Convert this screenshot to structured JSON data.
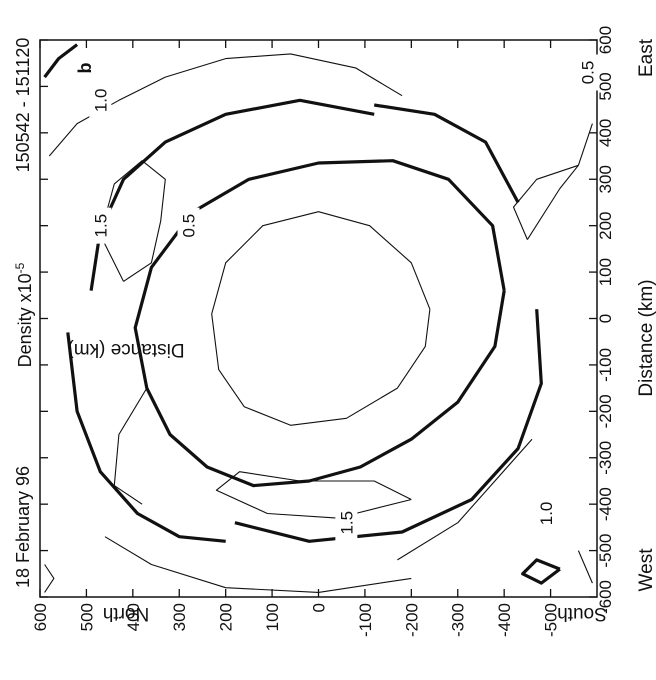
{
  "chart_data": {
    "type": "contour",
    "panel_label": "b",
    "date": "18 February 96",
    "quantity": "Density x10",
    "quantity_exponent": "-5",
    "time_range": "150542 - 151120",
    "xlabel": "Distance (km)",
    "ylabel": "Distance (km)",
    "x_left_label": "West",
    "x_right_label": "East",
    "y_top_label": "North",
    "y_bottom_label": "South",
    "xlim": [
      -600,
      600
    ],
    "ylim": [
      -600,
      600
    ],
    "x_ticks": [
      -600,
      -500,
      -400,
      -300,
      -200,
      -100,
      0,
      100,
      200,
      300,
      400,
      500,
      600
    ],
    "x_tick_labels": [
      "-600",
      "-500",
      "-400",
      "-300",
      "-200",
      "-100",
      "0",
      "100",
      "200",
      "300",
      "400",
      "500",
      "600"
    ],
    "y_ticks": [
      600,
      500,
      400,
      300,
      200,
      100,
      0,
      -100,
      -200,
      -300,
      -400,
      -500
    ],
    "y_tick_labels": [
      "600",
      "500",
      "400",
      "300",
      "200",
      "100",
      "0",
      "-100",
      "-200",
      "-300",
      "-400",
      "-500"
    ],
    "contour_levels": [
      0.5,
      1.0,
      1.5
    ],
    "contour_labels": [
      {
        "text": "1.0",
        "x": 470,
        "y": 470
      },
      {
        "text": "0.5",
        "x": 530,
        "y": -580
      },
      {
        "text": "1.5",
        "x": 200,
        "y": 470
      },
      {
        "text": "0.5",
        "x": 200,
        "y": 280
      },
      {
        "text": "1.0",
        "x": -420,
        "y": -490
      },
      {
        "text": "1.5",
        "x": -440,
        "y": -60
      }
    ],
    "contours": [
      {
        "level": 0.5,
        "weight": "thin",
        "points": [
          [
            20,
            -240
          ],
          [
            120,
            -200
          ],
          [
            200,
            -110
          ],
          [
            230,
            0
          ],
          [
            200,
            120
          ],
          [
            120,
            200
          ],
          [
            10,
            230
          ],
          [
            -110,
            215
          ],
          [
            -190,
            160
          ],
          [
            -230,
            60
          ],
          [
            -215,
            -60
          ],
          [
            -150,
            -170
          ],
          [
            -60,
            -230
          ],
          [
            20,
            -240
          ]
        ]
      },
      {
        "level": 1.0,
        "weight": "thick",
        "points": [
          [
            60,
            -400
          ],
          [
            200,
            -375
          ],
          [
            300,
            -280
          ],
          [
            340,
            -160
          ],
          [
            335,
            0
          ],
          [
            300,
            150
          ],
          [
            230,
            270
          ],
          [
            110,
            360
          ],
          [
            -20,
            395
          ],
          [
            -150,
            370
          ],
          [
            -250,
            320
          ],
          [
            -320,
            240
          ],
          [
            -360,
            140
          ],
          [
            -350,
            20
          ],
          [
            -320,
            -90
          ],
          [
            -260,
            -200
          ],
          [
            -180,
            -300
          ],
          [
            -60,
            -380
          ],
          [
            60,
            -400
          ]
        ]
      },
      {
        "level": 1.0,
        "weight": "thick",
        "points": [
          [
            440,
            -120
          ],
          [
            470,
            40
          ],
          [
            440,
            200
          ],
          [
            380,
            330
          ],
          [
            300,
            420
          ],
          [
            190,
            470
          ],
          [
            60,
            490
          ]
        ]
      },
      {
        "level": 1.0,
        "weight": "thick",
        "points": [
          [
            -440,
            180
          ],
          [
            -480,
            20
          ],
          [
            -460,
            -180
          ],
          [
            -390,
            -330
          ],
          [
            -280,
            -430
          ],
          [
            -140,
            -480
          ],
          [
            20,
            -470
          ]
        ]
      },
      {
        "level": 1.0,
        "weight": "thick",
        "points": [
          [
            250,
            -430
          ],
          [
            380,
            -360
          ],
          [
            440,
            -250
          ],
          [
            460,
            -120
          ]
        ]
      },
      {
        "level": 1.0,
        "weight": "thick",
        "points": [
          [
            -30,
            540
          ],
          [
            -200,
            520
          ],
          [
            -330,
            470
          ],
          [
            -420,
            390
          ],
          [
            -470,
            300
          ],
          [
            -480,
            200
          ]
        ]
      },
      {
        "level": 1.5,
        "weight": "thin",
        "points": [
          [
            80,
            420
          ],
          [
            180,
            470
          ],
          [
            290,
            440
          ],
          [
            340,
            380
          ],
          [
            300,
            330
          ],
          [
            210,
            340
          ],
          [
            120,
            360
          ],
          [
            80,
            420
          ]
        ]
      },
      {
        "level": 1.5,
        "weight": "thin",
        "points": [
          [
            -390,
            -200
          ],
          [
            -430,
            -40
          ],
          [
            -420,
            110
          ],
          [
            -370,
            220
          ],
          [
            -330,
            170
          ],
          [
            -350,
            40
          ],
          [
            -350,
            -120
          ],
          [
            -390,
            -200
          ]
        ]
      },
      {
        "level": 0.5,
        "weight": "thin",
        "points": [
          [
            170,
            -450
          ],
          [
            280,
            -520
          ],
          [
            330,
            -560
          ],
          [
            300,
            -470
          ],
          [
            240,
            -420
          ],
          [
            170,
            -450
          ]
        ]
      },
      {
        "level": 0.5,
        "weight": "thin",
        "points": [
          [
            480,
            -180
          ],
          [
            540,
            -80
          ],
          [
            570,
            60
          ],
          [
            560,
            200
          ],
          [
            520,
            330
          ],
          [
            470,
            430
          ],
          [
            420,
            520
          ],
          [
            350,
            580
          ]
        ]
      },
      {
        "level": 0.5,
        "weight": "thin",
        "points": [
          [
            -560,
            -200
          ],
          [
            -590,
            0
          ],
          [
            -580,
            200
          ],
          [
            -530,
            360
          ],
          [
            -470,
            460
          ]
        ]
      },
      {
        "level": 0.5,
        "weight": "thin",
        "points": [
          [
            -260,
            -460
          ],
          [
            -350,
            -380
          ],
          [
            -440,
            -300
          ],
          [
            -520,
            -170
          ]
        ]
      },
      {
        "level": 0.5,
        "weight": "thin",
        "points": [
          [
            -150,
            370
          ],
          [
            -250,
            430
          ],
          [
            -360,
            440
          ],
          [
            -400,
            380
          ]
        ]
      },
      {
        "level": 0.5,
        "weight": "thin",
        "points": [
          [
            330,
            -560
          ],
          [
            420,
            -590
          ]
        ]
      },
      {
        "level": 1.0,
        "weight": "thick",
        "points": [
          [
            520,
            590
          ],
          [
            560,
            560
          ],
          [
            590,
            520
          ]
        ]
      },
      {
        "level": 1.0,
        "weight": "thick",
        "points": [
          [
            -540,
            -520
          ],
          [
            -570,
            -480
          ],
          [
            -550,
            -440
          ],
          [
            -520,
            -470
          ],
          [
            -540,
            -520
          ]
        ]
      },
      {
        "level": 0.5,
        "weight": "thin",
        "points": [
          [
            -590,
            590
          ],
          [
            -560,
            570
          ],
          [
            -530,
            590
          ]
        ]
      },
      {
        "level": 0.5,
        "weight": "thin",
        "points": [
          [
            -500,
            -560
          ],
          [
            -570,
            -590
          ]
        ]
      }
    ]
  }
}
